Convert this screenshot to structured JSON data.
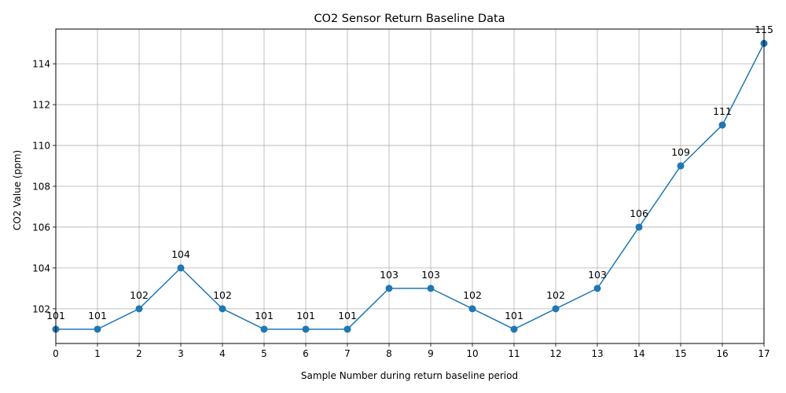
{
  "chart_data": {
    "type": "line",
    "title": "CO2 Sensor Return Baseline Data",
    "xlabel": "Sample Number during return baseline period",
    "ylabel": "CO2 Value (ppm)",
    "x": [
      0,
      1,
      2,
      3,
      4,
      5,
      6,
      7,
      8,
      9,
      10,
      11,
      12,
      13,
      14,
      15,
      16,
      17
    ],
    "series": [
      {
        "values": [
          101,
          101,
          102,
          104,
          102,
          101,
          101,
          101,
          103,
          103,
          102,
          101,
          102,
          103,
          106,
          109,
          111,
          115
        ],
        "color": "#1f77b4",
        "marker": "circle"
      }
    ],
    "data_labels": [
      "101",
      "101",
      "102",
      "104",
      "102",
      "101",
      "101",
      "101",
      "103",
      "103",
      "102",
      "101",
      "102",
      "103",
      "106",
      "109",
      "111",
      "115"
    ],
    "xticks": [
      "0",
      "1",
      "2",
      "3",
      "4",
      "5",
      "6",
      "7",
      "8",
      "9",
      "10",
      "11",
      "12",
      "13",
      "14",
      "15",
      "16",
      "17"
    ],
    "yticks": [
      "102",
      "104",
      "106",
      "108",
      "110",
      "112",
      "114"
    ],
    "xlim": [
      0,
      17
    ],
    "ylim": [
      100.3,
      115.7
    ],
    "grid": true,
    "colors": {
      "line": "#1f77b4",
      "grid": "#b0b0b0",
      "axis": "#000000"
    }
  }
}
